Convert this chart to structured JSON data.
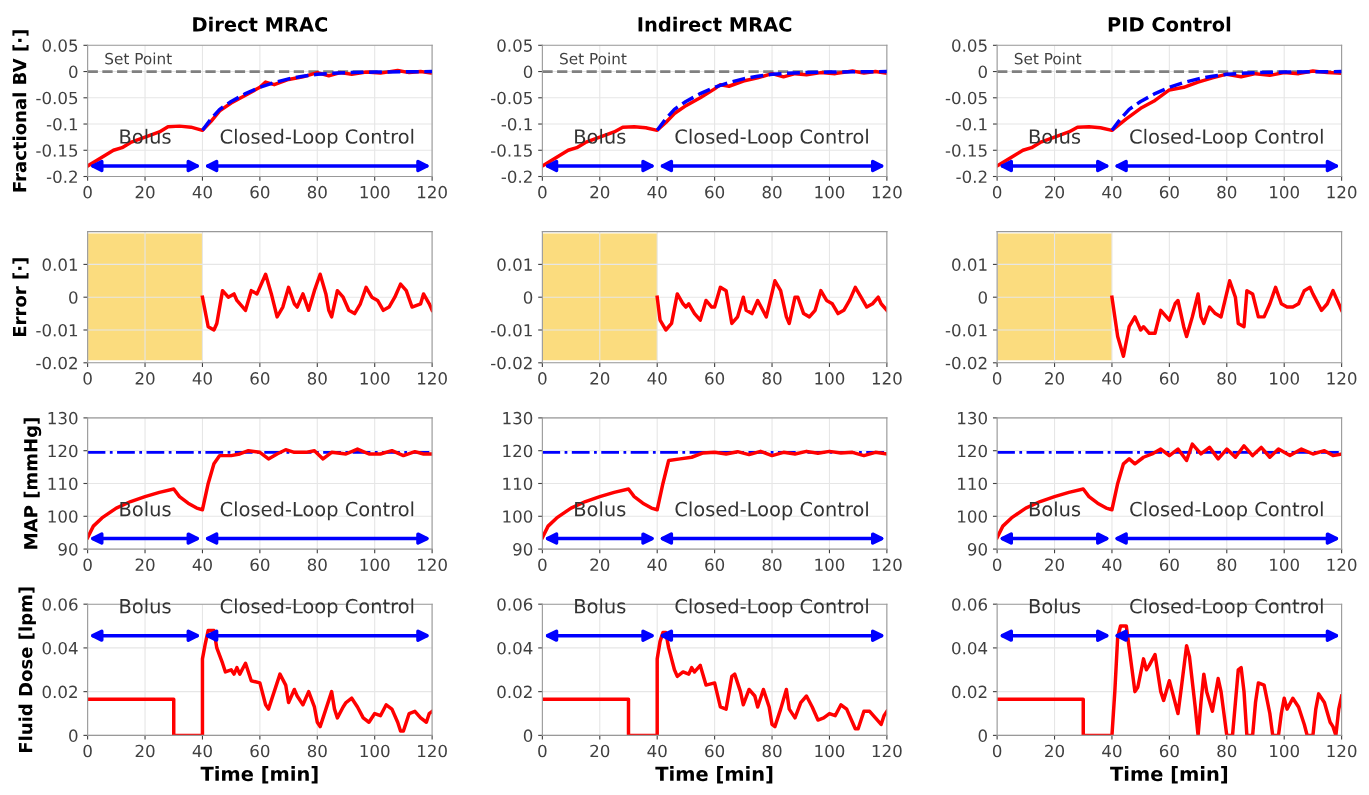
{
  "chart_data": [
    {
      "type": "line",
      "title": "Direct MRAC",
      "ylabel": "Fractional BV [·]",
      "xlim": [
        0,
        120
      ],
      "xticks": [
        0,
        20,
        40,
        60,
        80,
        100,
        120
      ],
      "ylim": [
        -0.2,
        0.05
      ],
      "yticks": [
        -0.2,
        -0.15,
        -0.1,
        -0.05,
        0,
        0.05
      ],
      "grid": true,
      "ref_lines": [
        {
          "axis": "y",
          "value": 0,
          "label": "Set Point",
          "color": "#808080",
          "line_style": "dashed"
        }
      ],
      "annotations": [
        "Bolus",
        "Closed-Loop Control"
      ],
      "series": [
        {
          "color": "#ff0000",
          "x": [
            0,
            3,
            6,
            9,
            12,
            15,
            20,
            25,
            28,
            32,
            36,
            40,
            43,
            46,
            50,
            55,
            60,
            62,
            65,
            70,
            75,
            80,
            84,
            88,
            92,
            97,
            102,
            108,
            112,
            116,
            120
          ],
          "values": [
            -0.18,
            -0.17,
            -0.16,
            -0.15,
            -0.145,
            -0.135,
            -0.125,
            -0.115,
            -0.105,
            -0.104,
            -0.106,
            -0.112,
            -0.095,
            -0.075,
            -0.06,
            -0.045,
            -0.03,
            -0.02,
            -0.025,
            -0.015,
            -0.01,
            -0.002,
            -0.008,
            -0.002,
            -0.005,
            -0.001,
            -0.003,
            0.002,
            -0.002,
            0,
            -0.003
          ]
        },
        {
          "color": "#0000ff",
          "line_style": "dashed",
          "x": [
            40,
            43,
            46,
            50,
            55,
            60,
            65,
            70,
            75,
            80,
            90,
            100,
            120
          ],
          "values": [
            -0.112,
            -0.09,
            -0.072,
            -0.057,
            -0.042,
            -0.03,
            -0.021,
            -0.014,
            -0.009,
            -0.005,
            -0.002,
            -0.001,
            0
          ]
        }
      ]
    },
    {
      "type": "line",
      "title": "Indirect MRAC",
      "xlim": [
        0,
        120
      ],
      "xticks": [
        0,
        20,
        40,
        60,
        80,
        100,
        120
      ],
      "ylim": [
        -0.2,
        0.05
      ],
      "yticks": [
        -0.2,
        -0.15,
        -0.1,
        -0.05,
        0,
        0.05
      ],
      "grid": true,
      "ref_lines": [
        {
          "axis": "y",
          "value": 0,
          "label": "Set Point",
          "color": "#808080",
          "line_style": "dashed"
        }
      ],
      "annotations": [
        "Bolus",
        "Closed-Loop Control"
      ],
      "series": [
        {
          "color": "#ff0000",
          "x": [
            0,
            3,
            6,
            9,
            12,
            15,
            20,
            25,
            28,
            32,
            36,
            40,
            43,
            46,
            50,
            55,
            60,
            62,
            65,
            70,
            75,
            80,
            84,
            88,
            92,
            97,
            102,
            108,
            112,
            116,
            120
          ],
          "values": [
            -0.18,
            -0.17,
            -0.16,
            -0.15,
            -0.145,
            -0.135,
            -0.125,
            -0.115,
            -0.106,
            -0.105,
            -0.107,
            -0.112,
            -0.097,
            -0.08,
            -0.065,
            -0.05,
            -0.033,
            -0.025,
            -0.028,
            -0.018,
            -0.012,
            -0.004,
            -0.01,
            -0.004,
            -0.006,
            -0.002,
            -0.004,
            0.001,
            -0.003,
            0,
            -0.003
          ]
        },
        {
          "color": "#0000ff",
          "line_style": "dashed",
          "x": [
            40,
            43,
            46,
            50,
            55,
            60,
            65,
            70,
            75,
            80,
            90,
            100,
            120
          ],
          "values": [
            -0.112,
            -0.09,
            -0.072,
            -0.057,
            -0.042,
            -0.03,
            -0.021,
            -0.014,
            -0.009,
            -0.005,
            -0.002,
            -0.001,
            0
          ]
        }
      ]
    },
    {
      "type": "line",
      "title": "PID Control",
      "xlim": [
        0,
        120
      ],
      "xticks": [
        0,
        20,
        40,
        60,
        80,
        100,
        120
      ],
      "ylim": [
        -0.2,
        0.05
      ],
      "yticks": [
        -0.2,
        -0.15,
        -0.1,
        -0.05,
        0,
        0.05
      ],
      "grid": true,
      "ref_lines": [
        {
          "axis": "y",
          "value": 0,
          "label": "Set Point",
          "color": "#808080",
          "line_style": "dashed"
        }
      ],
      "annotations": [
        "Bolus",
        "Closed-Loop Control"
      ],
      "series": [
        {
          "color": "#ff0000",
          "x": [
            0,
            3,
            6,
            9,
            12,
            15,
            20,
            25,
            28,
            32,
            36,
            40,
            45,
            50,
            55,
            60,
            65,
            70,
            75,
            80,
            85,
            90,
            95,
            100,
            105,
            110,
            115,
            120
          ],
          "values": [
            -0.18,
            -0.17,
            -0.16,
            -0.15,
            -0.145,
            -0.135,
            -0.125,
            -0.115,
            -0.106,
            -0.105,
            -0.107,
            -0.112,
            -0.09,
            -0.07,
            -0.055,
            -0.035,
            -0.03,
            -0.02,
            -0.012,
            -0.005,
            -0.01,
            -0.004,
            -0.007,
            -0.002,
            -0.004,
            0.001,
            -0.002,
            -0.003
          ]
        },
        {
          "color": "#0000ff",
          "line_style": "dashed",
          "x": [
            40,
            43,
            46,
            50,
            55,
            60,
            65,
            70,
            75,
            80,
            90,
            100,
            120
          ],
          "values": [
            -0.112,
            -0.09,
            -0.072,
            -0.057,
            -0.042,
            -0.03,
            -0.021,
            -0.014,
            -0.009,
            -0.005,
            -0.002,
            -0.001,
            0
          ]
        }
      ]
    },
    {
      "type": "line",
      "ylabel": "Error [·]",
      "xlim": [
        0,
        120
      ],
      "xticks": [
        0,
        20,
        40,
        60,
        80,
        100,
        120
      ],
      "ylim": [
        -0.02,
        0.02
      ],
      "yticks": [
        -0.02,
        -0.01,
        0,
        0.01
      ],
      "grid": true,
      "bands": [
        {
          "axis": "x",
          "from": 0,
          "to": 40,
          "color": "#fbdc7e"
        }
      ],
      "series": [
        {
          "color": "#ff0000",
          "x": [
            40,
            42,
            44,
            45,
            47,
            49,
            51,
            52,
            55,
            57,
            59,
            62,
            64,
            66,
            68,
            70,
            72,
            73,
            75,
            77,
            79,
            81,
            83,
            84,
            85,
            87,
            89,
            91,
            93,
            95,
            97,
            99,
            101,
            103,
            105,
            107,
            109,
            111,
            113,
            116,
            117,
            119,
            120
          ],
          "values": [
            0,
            -0.009,
            -0.01,
            -0.008,
            0.002,
            0,
            0.001,
            -0.001,
            -0.004,
            0.002,
            0.001,
            0.007,
            0.001,
            -0.006,
            -0.003,
            0.003,
            -0.002,
            -0.003,
            0.001,
            -0.004,
            0.002,
            0.007,
            0.001,
            -0.004,
            -0.006,
            0.002,
            0,
            -0.004,
            -0.005,
            -0.002,
            0.003,
            0,
            -0.001,
            -0.004,
            -0.003,
            0,
            0.004,
            0.002,
            -0.003,
            -0.002,
            0.001,
            -0.002,
            -0.004
          ]
        }
      ]
    },
    {
      "type": "line",
      "xlim": [
        0,
        120
      ],
      "xticks": [
        0,
        20,
        40,
        60,
        80,
        100,
        120
      ],
      "ylim": [
        -0.02,
        0.02
      ],
      "yticks": [
        -0.02,
        -0.01,
        0,
        0.01
      ],
      "grid": true,
      "bands": [
        {
          "axis": "x",
          "from": 0,
          "to": 40,
          "color": "#fbdc7e"
        }
      ],
      "series": [
        {
          "color": "#ff0000",
          "x": [
            40,
            41,
            43,
            45,
            47,
            49,
            50,
            51,
            53,
            55,
            57,
            59,
            60,
            62,
            64,
            66,
            68,
            70,
            71,
            73,
            75,
            78,
            81,
            83,
            85,
            86,
            88,
            89,
            91,
            93,
            95,
            97,
            99,
            101,
            103,
            105,
            107,
            109,
            111,
            113,
            115,
            117,
            118,
            120
          ],
          "values": [
            0,
            -0.007,
            -0.01,
            -0.008,
            0.001,
            -0.002,
            -0.003,
            -0.002,
            -0.005,
            -0.007,
            -0.001,
            -0.003,
            -0.003,
            0.003,
            0.002,
            -0.008,
            -0.006,
            0,
            -0.004,
            -0.005,
            -0.001,
            -0.006,
            0.005,
            0.002,
            -0.006,
            -0.008,
            0,
            0,
            -0.005,
            -0.006,
            -0.004,
            0.002,
            -0.001,
            -0.002,
            -0.005,
            -0.004,
            -0.001,
            0.003,
            0,
            -0.003,
            -0.002,
            0,
            -0.002,
            -0.004
          ]
        }
      ]
    },
    {
      "type": "line",
      "xlim": [
        0,
        120
      ],
      "xticks": [
        0,
        20,
        40,
        60,
        80,
        100,
        120
      ],
      "ylim": [
        -0.02,
        0.02
      ],
      "yticks": [
        -0.02,
        -0.01,
        0,
        0.01
      ],
      "grid": true,
      "bands": [
        {
          "axis": "x",
          "from": 0,
          "to": 40,
          "color": "#fbdc7e"
        }
      ],
      "series": [
        {
          "color": "#ff0000",
          "x": [
            40,
            42,
            44,
            46,
            48,
            50,
            51,
            53,
            55,
            57,
            59,
            60,
            62,
            63,
            65,
            66,
            68,
            70,
            71,
            72,
            74,
            76,
            78,
            81,
            83,
            84,
            86,
            87,
            89,
            91,
            93,
            95,
            97,
            99,
            101,
            103,
            105,
            107,
            109,
            110,
            113,
            115,
            117,
            118,
            120
          ],
          "values": [
            0,
            -0.012,
            -0.018,
            -0.009,
            -0.006,
            -0.01,
            -0.009,
            -0.011,
            -0.011,
            -0.004,
            -0.006,
            -0.007,
            -0.002,
            -0.001,
            -0.009,
            -0.012,
            -0.006,
            0.001,
            -0.006,
            -0.008,
            -0.003,
            -0.005,
            -0.006,
            0.005,
            0,
            -0.008,
            -0.009,
            0.002,
            0.001,
            -0.006,
            -0.006,
            -0.002,
            0.003,
            -0.002,
            -0.003,
            -0.003,
            -0.002,
            0.002,
            0.003,
            0.001,
            -0.004,
            -0.002,
            0.002,
            0,
            -0.004
          ]
        }
      ]
    },
    {
      "type": "line",
      "ylabel": "MAP [mmHg]",
      "xlim": [
        0,
        120
      ],
      "xticks": [
        0,
        20,
        40,
        60,
        80,
        100,
        120
      ],
      "ylim": [
        90,
        130
      ],
      "yticks": [
        90,
        100,
        110,
        120,
        130
      ],
      "grid": true,
      "ref_lines": [
        {
          "axis": "y",
          "value": 119.5,
          "color": "#0000ff",
          "line_style": "dashdot"
        }
      ],
      "annotations": [
        "Bolus",
        "Closed-Loop Control"
      ],
      "series": [
        {
          "color": "#ff0000",
          "x": [
            0,
            2,
            5,
            10,
            15,
            20,
            25,
            30,
            32,
            35,
            38,
            40,
            42,
            44,
            46,
            50,
            53,
            56,
            60,
            63,
            66,
            69,
            72,
            76,
            79,
            82,
            85,
            90,
            94,
            98,
            102,
            106,
            110,
            114,
            117,
            120
          ],
          "values": [
            93.5,
            97,
            99.5,
            102.5,
            104.5,
            106,
            107.3,
            108.3,
            106,
            104,
            102.5,
            102,
            110,
            116,
            118.5,
            118.5,
            119,
            120,
            119.5,
            117.5,
            119,
            120.3,
            119.5,
            119.5,
            120,
            117.5,
            119.5,
            119,
            120.5,
            119,
            119,
            120,
            118.5,
            119.7,
            119,
            119
          ]
        }
      ]
    },
    {
      "type": "line",
      "xlim": [
        0,
        120
      ],
      "xticks": [
        0,
        20,
        40,
        60,
        80,
        100,
        120
      ],
      "ylim": [
        90,
        130
      ],
      "yticks": [
        90,
        100,
        110,
        120,
        130
      ],
      "grid": true,
      "ref_lines": [
        {
          "axis": "y",
          "value": 119.5,
          "color": "#0000ff",
          "line_style": "dashdot"
        }
      ],
      "annotations": [
        "Bolus",
        "Closed-Loop Control"
      ],
      "series": [
        {
          "color": "#ff0000",
          "x": [
            0,
            2,
            5,
            10,
            15,
            20,
            25,
            30,
            32,
            35,
            38,
            40,
            42,
            44,
            48,
            52,
            56,
            60,
            64,
            68,
            72,
            76,
            80,
            84,
            88,
            92,
            96,
            100,
            104,
            108,
            112,
            116,
            120
          ],
          "values": [
            93.5,
            97,
            99.5,
            102.5,
            104.5,
            106,
            107.3,
            108.3,
            106,
            104,
            102.5,
            102,
            110,
            117,
            117.5,
            118,
            119.3,
            119.5,
            119,
            119.7,
            118.8,
            119.8,
            118.5,
            119.5,
            119,
            119.8,
            119.2,
            119.8,
            119.3,
            119.5,
            118.5,
            119.5,
            119
          ]
        }
      ]
    },
    {
      "type": "line",
      "xlim": [
        0,
        120
      ],
      "xticks": [
        0,
        20,
        40,
        60,
        80,
        100,
        120
      ],
      "ylim": [
        90,
        130
      ],
      "yticks": [
        90,
        100,
        110,
        120,
        130
      ],
      "grid": true,
      "ref_lines": [
        {
          "axis": "y",
          "value": 119.5,
          "color": "#0000ff",
          "line_style": "dashdot"
        }
      ],
      "annotations": [
        "Bolus",
        "Closed-Loop Control"
      ],
      "series": [
        {
          "color": "#ff0000",
          "x": [
            0,
            2,
            5,
            10,
            15,
            20,
            25,
            30,
            32,
            35,
            38,
            40,
            42,
            44,
            46,
            48,
            51,
            54,
            57,
            60,
            63,
            66,
            68,
            71,
            74,
            77,
            80,
            83,
            86,
            89,
            92,
            95,
            98,
            102,
            106,
            110,
            114,
            117,
            120
          ],
          "values": [
            93.5,
            97,
            99.5,
            102.5,
            104.5,
            106,
            107.3,
            108.3,
            106,
            104,
            102.5,
            102,
            110,
            116,
            117.5,
            116,
            118,
            119,
            120.5,
            118.5,
            120.5,
            117,
            122,
            119,
            121,
            117.5,
            120.5,
            118,
            121.5,
            118.5,
            121,
            118,
            120.5,
            118.5,
            120.5,
            119,
            120,
            118.5,
            119
          ]
        }
      ]
    },
    {
      "type": "line",
      "ylabel": "Fluid Dose [lpm]",
      "xlabel": "Time [min]",
      "xlim": [
        0,
        120
      ],
      "xticks": [
        0,
        20,
        40,
        60,
        80,
        100,
        120
      ],
      "ylim": [
        0,
        0.06
      ],
      "yticks": [
        0,
        0.02,
        0.04,
        0.06
      ],
      "grid": true,
      "annotations": [
        "Bolus",
        "Closed-Loop Control"
      ],
      "series": [
        {
          "color": "#ff0000",
          "x": [
            0,
            30,
            30,
            40,
            40,
            41,
            42,
            44,
            45,
            47,
            48,
            50,
            51,
            52,
            53,
            55,
            57,
            60,
            62,
            63,
            64,
            67,
            69,
            70,
            72,
            73,
            75,
            77,
            79,
            80,
            81,
            83,
            85,
            86,
            87,
            89,
            90,
            92,
            94,
            96,
            98,
            100,
            102,
            104,
            106,
            108,
            109,
            110,
            112,
            114,
            116,
            118,
            119,
            120
          ],
          "values": [
            0.0165,
            0.0165,
            0,
            0,
            0.035,
            0.042,
            0.048,
            0.048,
            0.04,
            0.033,
            0.029,
            0.03,
            0.028,
            0.031,
            0.028,
            0.033,
            0.025,
            0.024,
            0.014,
            0.012,
            0.016,
            0.028,
            0.023,
            0.015,
            0.021,
            0.018,
            0.014,
            0.02,
            0.013,
            0.006,
            0.004,
            0.012,
            0.02,
            0.012,
            0.008,
            0.013,
            0.015,
            0.017,
            0.013,
            0.008,
            0.006,
            0.01,
            0.009,
            0.014,
            0.012,
            0.006,
            0.002,
            0.002,
            0.01,
            0.011,
            0.008,
            0.006,
            0.01,
            0.011
          ]
        }
      ]
    },
    {
      "type": "line",
      "xlabel": "Time [min]",
      "xlim": [
        0,
        120
      ],
      "xticks": [
        0,
        20,
        40,
        60,
        80,
        100,
        120
      ],
      "ylim": [
        0,
        0.06
      ],
      "yticks": [
        0,
        0.02,
        0.04,
        0.06
      ],
      "grid": true,
      "annotations": [
        "Bolus",
        "Closed-Loop Control"
      ],
      "series": [
        {
          "color": "#ff0000",
          "x": [
            0,
            30,
            30,
            40,
            40,
            41,
            42,
            43,
            44,
            46,
            47,
            49,
            51,
            52,
            53,
            55,
            57,
            60,
            62,
            64,
            66,
            67,
            69,
            70,
            72,
            74,
            75,
            77,
            79,
            80,
            81,
            83,
            85,
            86,
            88,
            90,
            92,
            94,
            96,
            98,
            100,
            102,
            104,
            106,
            108,
            109,
            110,
            112,
            114,
            116,
            118,
            119,
            120
          ],
          "values": [
            0.0165,
            0.0165,
            0,
            0,
            0.035,
            0.043,
            0.047,
            0.047,
            0.04,
            0.03,
            0.027,
            0.029,
            0.028,
            0.031,
            0.029,
            0.032,
            0.023,
            0.024,
            0.013,
            0.012,
            0.027,
            0.028,
            0.02,
            0.014,
            0.021,
            0.018,
            0.013,
            0.021,
            0.013,
            0.005,
            0.004,
            0.012,
            0.021,
            0.012,
            0.008,
            0.015,
            0.018,
            0.013,
            0.007,
            0.008,
            0.01,
            0.009,
            0.014,
            0.012,
            0.006,
            0.003,
            0.003,
            0.011,
            0.011,
            0.008,
            0.005,
            0.009,
            0.011
          ]
        }
      ]
    },
    {
      "type": "line",
      "xlabel": "Time [min]",
      "xlim": [
        0,
        120
      ],
      "xticks": [
        0,
        20,
        40,
        60,
        80,
        100,
        120
      ],
      "ylim": [
        0,
        0.06
      ],
      "yticks": [
        0,
        0.02,
        0.04,
        0.06
      ],
      "grid": true,
      "annotations": [
        "Bolus",
        "Closed-Loop Control"
      ],
      "series": [
        {
          "color": "#ff0000",
          "x": [
            0,
            30,
            30,
            40,
            41,
            42,
            43,
            45,
            46,
            47,
            48,
            49,
            51,
            52,
            53,
            55,
            57,
            58,
            60,
            61,
            63,
            64,
            66,
            67,
            69,
            70,
            71,
            72,
            73,
            75,
            77,
            78,
            80,
            82,
            84,
            85,
            86,
            87,
            89,
            90,
            91,
            93,
            95,
            96,
            98,
            99,
            100,
            101,
            103,
            105,
            107,
            108,
            110,
            111,
            112,
            114,
            116,
            117,
            118,
            119,
            120
          ],
          "values": [
            0.0165,
            0.0165,
            0,
            0,
            0.02,
            0.045,
            0.05,
            0.05,
            0.04,
            0.03,
            0.02,
            0.022,
            0.035,
            0.03,
            0.032,
            0.037,
            0.02,
            0.016,
            0.025,
            0.02,
            0.01,
            0.02,
            0.041,
            0.036,
            0.013,
            0,
            0.015,
            0.028,
            0.02,
            0.011,
            0.026,
            0.02,
            0,
            0,
            0.03,
            0.031,
            0.02,
            0,
            0,
            0.015,
            0.024,
            0.023,
            0.01,
            0,
            0,
            0.01,
            0.017,
            0.012,
            0.017,
            0.013,
            0.005,
            0,
            0,
            0.012,
            0.019,
            0.015,
            0.006,
            0.004,
            0,
            0.012,
            0.018
          ]
        }
      ]
    }
  ]
}
